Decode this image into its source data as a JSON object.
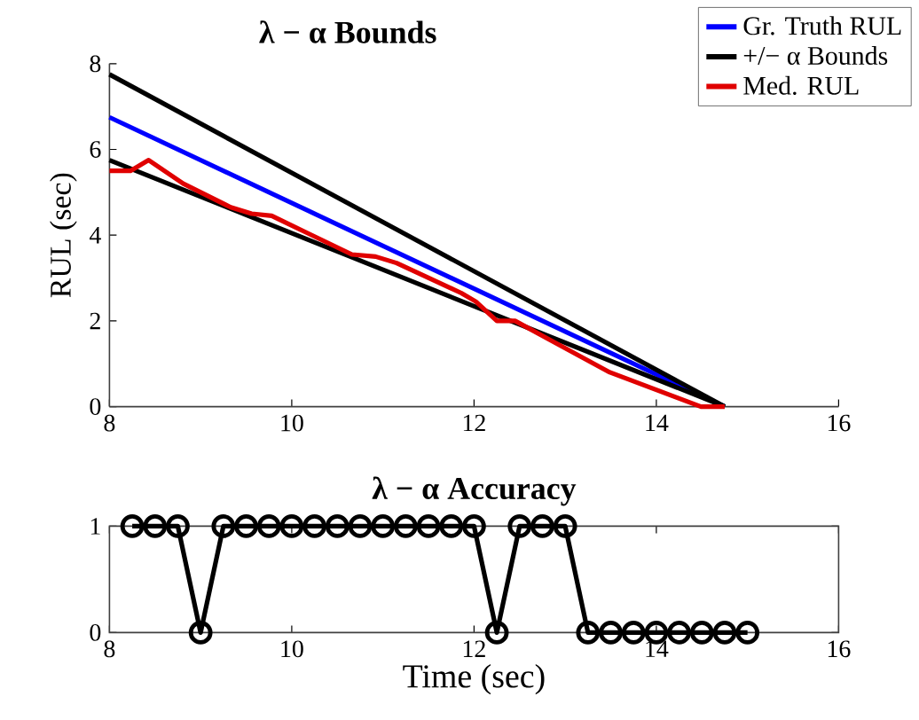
{
  "chart_data": [
    {
      "type": "line",
      "title": "λ − α  Bounds",
      "ylabel": "RUL (sec)",
      "xlim": [
        8,
        16
      ],
      "ylim": [
        0,
        8
      ],
      "xticks": [
        8,
        10,
        12,
        14,
        16
      ],
      "yticks": [
        0,
        2,
        4,
        6,
        8
      ],
      "legend": "top right",
      "series": [
        {
          "name": "Gr. Truth RUL",
          "color": "#0000ff",
          "x": [
            8,
            14.75
          ],
          "values": [
            6.75,
            0
          ]
        },
        {
          "name": "+/− α Bounds",
          "color": "#000000",
          "x": [
            8,
            14.75
          ],
          "values": [
            7.75,
            0
          ]
        },
        {
          "color": "#000000",
          "x": [
            8,
            14.75
          ],
          "values": [
            5.75,
            0
          ]
        },
        {
          "name": "Med. RUL",
          "color": "#e00000",
          "x": [
            8,
            8.23,
            8.43,
            8.81,
            9.33,
            9.56,
            9.78,
            10.17,
            10.66,
            10.92,
            11.15,
            11.86,
            12.02,
            12.25,
            12.45,
            12.84,
            13.49,
            14.49,
            14.75
          ],
          "values": [
            5.5,
            5.5,
            5.75,
            5.2,
            4.65,
            4.5,
            4.45,
            4.05,
            3.55,
            3.5,
            3.35,
            2.65,
            2.45,
            2.0,
            2.0,
            1.55,
            0.8,
            0,
            0
          ]
        }
      ]
    },
    {
      "type": "line",
      "title": "λ − α  Accuracy",
      "xlabel": "Time (sec)",
      "xlim": [
        8,
        16
      ],
      "ylim": [
        0,
        1
      ],
      "xticks": [
        8,
        10,
        12,
        14,
        16
      ],
      "yticks": [
        0,
        1
      ],
      "marker": "circle",
      "series": [
        {
          "color": "#000000",
          "x": [
            8.25,
            8.5,
            8.75,
            9.0,
            9.25,
            9.5,
            9.75,
            10.0,
            10.25,
            10.5,
            10.75,
            11.0,
            11.25,
            11.5,
            11.75,
            12.0,
            12.25,
            12.5,
            12.75,
            13.0,
            13.25,
            13.5,
            13.75,
            14.0,
            14.25,
            14.5,
            14.75,
            15.0
          ],
          "values": [
            1,
            1,
            1,
            0,
            1,
            1,
            1,
            1,
            1,
            1,
            1,
            1,
            1,
            1,
            1,
            1,
            0,
            1,
            1,
            1,
            0,
            0,
            0,
            0,
            0,
            0,
            0,
            0
          ]
        }
      ]
    }
  ]
}
